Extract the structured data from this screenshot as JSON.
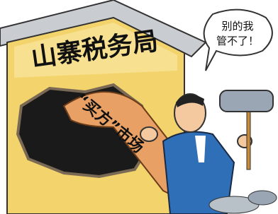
{
  "sign": "山寨税务局",
  "speech_bubble": {
    "lines": [
      "别的我",
      "管不了！"
    ]
  },
  "pipe_text": "“买方”市场"
}
